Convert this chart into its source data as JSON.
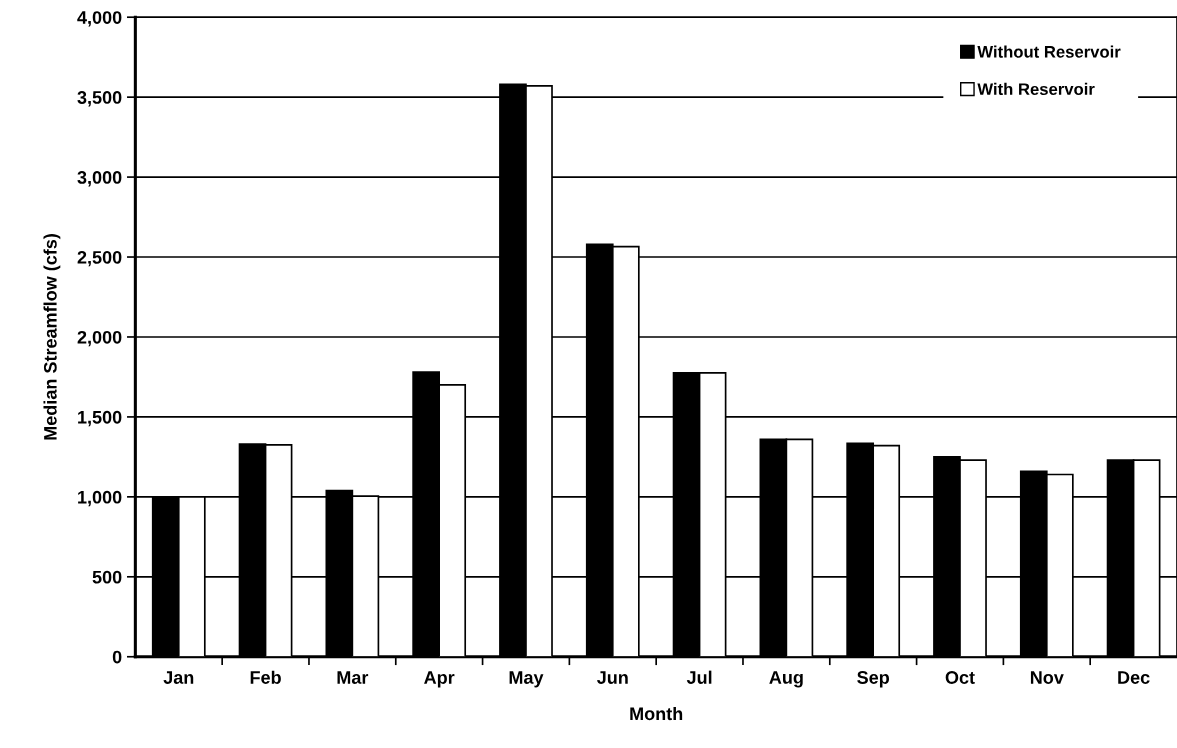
{
  "chart_data": {
    "type": "bar",
    "xlabel": "Month",
    "ylabel": "Median Streamflow (cfs)",
    "categories": [
      "Jan",
      "Feb",
      "Mar",
      "Apr",
      "May",
      "Jun",
      "Jul",
      "Aug",
      "Sep",
      "Oct",
      "Nov",
      "Dec"
    ],
    "series": [
      {
        "name": "Without Reservoir",
        "color": "#000000",
        "values": [
          1000,
          1330,
          1040,
          1780,
          3580,
          2580,
          1775,
          1360,
          1335,
          1250,
          1160,
          1230
        ]
      },
      {
        "name": "With Reservoir",
        "color": "#ffffff",
        "values": [
          1000,
          1325,
          1005,
          1700,
          3570,
          2565,
          1775,
          1360,
          1320,
          1230,
          1140,
          1230
        ]
      }
    ],
    "ylim": [
      0,
      4000
    ],
    "yticks": [
      0,
      500,
      {
        "value": 1000,
        "label": "1,000"
      },
      {
        "value": 1500,
        "label": "1,500"
      },
      {
        "value": 2000,
        "label": "2,000"
      },
      {
        "value": 2500,
        "label": "2,500"
      },
      {
        "value": 3000,
        "label": "3,000"
      },
      {
        "value": 3500,
        "label": "3,500"
      },
      {
        "value": 4000,
        "label": "4,000"
      }
    ],
    "grid": "y",
    "legend": "top right"
  }
}
